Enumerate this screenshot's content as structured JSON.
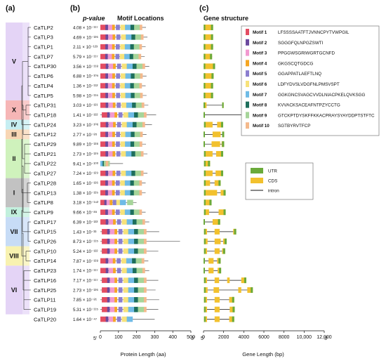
{
  "panels": {
    "a": "(a)",
    "b": "(b)",
    "c": "(c)"
  },
  "headers": {
    "pvalue": "p-value",
    "motif_locations": "Motif Locations",
    "gene_structure": "Gene structure"
  },
  "groups": [
    {
      "label": "V",
      "first": 0,
      "last": 7,
      "color": "#e4d4f6"
    },
    {
      "label": "X",
      "first": 8,
      "last": 9,
      "color": "#f6b6b6"
    },
    {
      "label": "IV",
      "first": 10,
      "last": 10,
      "color": "#c6eef2"
    },
    {
      "label": "III",
      "first": 11,
      "last": 11,
      "color": "#f8d6b4"
    },
    {
      "label": "II",
      "first": 12,
      "last": 15,
      "color": "#cff2bc"
    },
    {
      "label": "I",
      "first": 16,
      "last": 18,
      "color": "#c2c2c2"
    },
    {
      "label": "IX",
      "first": 19,
      "last": 19,
      "color": "#c2f0dd"
    },
    {
      "label": "VII",
      "first": 20,
      "last": 22,
      "color": "#c7dcf6"
    },
    {
      "label": "VIII",
      "first": 23,
      "last": 24,
      "color": "#f8f2b0"
    },
    {
      "label": "VI",
      "first": 25,
      "last": 29,
      "color": "#e4d4f6"
    }
  ],
  "genes": [
    {
      "name": "CaTLP2",
      "pvalue": "4.08 × 10⁻¹¹⁷",
      "length": 252,
      "motifs": [
        1,
        2,
        3,
        4,
        5,
        6,
        7,
        8,
        9,
        10
      ],
      "gene": [
        {
          "s": 20,
          "e": 950
        }
      ]
    },
    {
      "name": "CaTLP3",
      "pvalue": "4.69 × 10⁻¹²⁶",
      "length": 260,
      "motifs": [
        1,
        2,
        3,
        4,
        5,
        6,
        7,
        8,
        9,
        10
      ],
      "gene": [
        {
          "s": 20,
          "e": 950
        }
      ]
    },
    {
      "name": "CaTLP1",
      "pvalue": "2.11 × 10⁻¹²³",
      "length": 250,
      "motifs": [
        1,
        2,
        3,
        4,
        5,
        6,
        7,
        8,
        9,
        10
      ],
      "gene": [
        {
          "s": 20,
          "e": 950
        }
      ]
    },
    {
      "name": "CaTLP7",
      "pvalue": "5.79 × 10⁻¹¹⁷",
      "length": 245,
      "motifs": [
        1,
        2,
        3,
        4,
        5,
        6,
        7,
        8,
        9,
        10
      ],
      "gene": [
        {
          "s": 20,
          "e": 850
        }
      ]
    },
    {
      "name": "CaTLP30",
      "pvalue": "3.56 × 10⁻¹¹⁸",
      "length": 270,
      "motifs": [
        1,
        2,
        3,
        4,
        5,
        6,
        7,
        8,
        9,
        10
      ],
      "gene": [
        {
          "s": 20,
          "e": 1150
        }
      ]
    },
    {
      "name": "CaTLP6",
      "pvalue": "6.88 × 10⁻¹⁰⁵",
      "length": 255,
      "motifs": [
        1,
        2,
        3,
        4,
        5,
        6,
        7,
        8,
        9,
        10
      ],
      "gene": [
        {
          "s": 20,
          "e": 1000
        }
      ]
    },
    {
      "name": "CaTLP4",
      "pvalue": "1.36 × 10⁻¹¹²",
      "length": 250,
      "motifs": [
        1,
        2,
        3,
        4,
        5,
        6,
        7,
        8,
        9,
        10
      ],
      "gene": [
        {
          "s": 20,
          "e": 950
        }
      ]
    },
    {
      "name": "CaTLP5",
      "pvalue": "5.98 × 10⁻¹¹⁵",
      "length": 255,
      "motifs": [
        1,
        2,
        3,
        4,
        5,
        6,
        7,
        8,
        9,
        10
      ],
      "gene": [
        {
          "s": 20,
          "e": 950
        }
      ]
    },
    {
      "name": "CaTLP31",
      "pvalue": "3.03 × 10⁻¹²¹",
      "length": 265,
      "motifs": [
        1,
        2,
        3,
        4,
        5,
        6,
        7,
        8,
        9,
        10
      ],
      "gene": [
        {
          "s": 0,
          "e": 300
        },
        {
          "s": 1850,
          "e": 2000
        }
      ]
    },
    {
      "name": "CaTLP18",
      "pvalue": "1.41 × 10⁻¹²²",
      "length": 308,
      "motifs": [
        1,
        2,
        3,
        4,
        5,
        6,
        7,
        8,
        9,
        10
      ],
      "gene": [
        {
          "s": 0,
          "e": 100
        },
        {
          "s": 9100,
          "e": 9700
        },
        {
          "s": 11300,
          "e": 11700
        }
      ]
    },
    {
      "name": "CaTLP24",
      "pvalue": "3.23 × 10⁻¹⁰⁶",
      "length": 285,
      "motifs": [
        1,
        2,
        3,
        4,
        5,
        6,
        7,
        8,
        9,
        10
      ],
      "gene": [
        {
          "s": 50,
          "e": 900
        },
        {
          "s": 1350,
          "e": 1950
        }
      ]
    },
    {
      "name": "CaTLP12",
      "pvalue": "2.77 × 10⁻⁸⁵",
      "length": 255,
      "motifs": [
        1,
        2,
        3,
        4,
        5,
        6,
        7,
        8,
        9,
        10
      ],
      "gene": [
        {
          "s": 0,
          "e": 100
        },
        {
          "s": 900,
          "e": 1700
        },
        {
          "s": 1850,
          "e": 2050
        }
      ]
    },
    {
      "name": "CaTLP29",
      "pvalue": "9.89 × 10⁻¹²⁸",
      "length": 252,
      "motifs": [
        1,
        2,
        3,
        4,
        5,
        6,
        7,
        8,
        9,
        10
      ],
      "gene": [
        {
          "s": 0,
          "e": 100
        },
        {
          "s": 800,
          "e": 1650
        },
        {
          "s": 1800,
          "e": 2050
        }
      ]
    },
    {
      "name": "CaTLP21",
      "pvalue": "2.73 × 10⁻¹²⁹",
      "length": 260,
      "motifs": [
        1,
        2,
        3,
        4,
        5,
        6,
        7,
        8,
        9,
        10
      ],
      "gene": [
        {
          "s": 50,
          "e": 900
        },
        {
          "s": 1250,
          "e": 1950
        }
      ]
    },
    {
      "name": "CaTLP22",
      "pvalue": "9.41 × 10⁻¹⁰⁰",
      "length": 125,
      "motifs": [
        7,
        8,
        9,
        10
      ],
      "gene": [
        {
          "s": 50,
          "e": 650
        }
      ]
    },
    {
      "name": "CaTLP27",
      "pvalue": "7.24 × 10⁻¹²⁹",
      "length": 260,
      "motifs": [
        1,
        2,
        3,
        4,
        5,
        6,
        7,
        8,
        9,
        10
      ],
      "gene": [
        {
          "s": 50,
          "e": 900
        },
        {
          "s": 1200,
          "e": 1950
        }
      ]
    },
    {
      "name": "CaTLP28",
      "pvalue": "1.65 × 10⁻¹²⁶",
      "length": 250,
      "motifs": [
        1,
        2,
        3,
        4,
        5,
        6,
        7,
        8,
        9,
        10
      ],
      "gene": [
        {
          "s": 50,
          "e": 650
        },
        {
          "s": 1100,
          "e": 1700
        }
      ]
    },
    {
      "name": "CaTLP13",
      "pvalue": "1.38 × 10⁻¹²⁵",
      "length": 250,
      "motifs": [
        1,
        2,
        3,
        4,
        5,
        6,
        7,
        8,
        9,
        10
      ],
      "gene": [
        {
          "s": 50,
          "e": 1350
        },
        {
          "s": 1700,
          "e": 2200
        }
      ]
    },
    {
      "name": "CaTLP8",
      "pvalue": "3.18 × 10⁻¹⁴²",
      "length": 200,
      "motifs": [
        1,
        2,
        3,
        4,
        5,
        6,
        7,
        9
      ],
      "gene": [
        {
          "s": 50,
          "e": 800
        }
      ]
    },
    {
      "name": "CaTLP9",
      "pvalue": "9.66 × 10⁻⁸⁵",
      "length": 250,
      "motifs": [
        1,
        2,
        3,
        4,
        5,
        6,
        7,
        8,
        9,
        10
      ],
      "gene": [
        {
          "s": 50,
          "e": 550
        },
        {
          "s": 1500,
          "e": 2200
        }
      ]
    },
    {
      "name": "CaTLP17",
      "pvalue": "6.39 × 10⁻¹²²",
      "length": 270,
      "motifs": [
        1,
        2,
        3,
        4,
        5,
        6,
        7,
        8,
        9,
        10
      ],
      "gene": [
        {
          "s": 0,
          "e": 100
        },
        {
          "s": 900,
          "e": 1650
        }
      ]
    },
    {
      "name": "CaTLP15",
      "pvalue": "1.43 × 10⁻³³",
      "length": 325,
      "motifs": [
        1,
        2,
        3,
        4,
        5,
        6,
        7,
        8,
        9,
        10
      ],
      "gene": [
        {
          "s": 50,
          "e": 350
        },
        {
          "s": 1100,
          "e": 1600
        },
        {
          "s": 2950,
          "e": 3250
        }
      ]
    },
    {
      "name": "CaTLP26",
      "pvalue": "8.73 × 10⁻¹¹⁵",
      "length": 440,
      "motifs": [
        1,
        2,
        3,
        4,
        5,
        6,
        7,
        8,
        9,
        10
      ],
      "gene": [
        {
          "s": 50,
          "e": 400
        },
        {
          "s": 1100,
          "e": 1700
        },
        {
          "s": 1950,
          "e": 2300
        }
      ]
    },
    {
      "name": "CaTLP10",
      "pvalue": "5.24 × 10⁻¹²²",
      "length": 320,
      "motifs": [
        1,
        2,
        3,
        4,
        5,
        6,
        7,
        8,
        9,
        10
      ],
      "gene": [
        {
          "s": 50,
          "e": 350
        },
        {
          "s": 1100,
          "e": 1600
        },
        {
          "s": 1850,
          "e": 2150
        }
      ]
    },
    {
      "name": "CaTLP14",
      "pvalue": "7.87 × 10⁻¹²⁸",
      "length": 265,
      "motifs": [
        1,
        2,
        3,
        4,
        5,
        6,
        7,
        8,
        9,
        10
      ],
      "gene": [
        {
          "s": 0,
          "e": 100
        },
        {
          "s": 500,
          "e": 1000
        },
        {
          "s": 1350,
          "e": 1700
        }
      ]
    },
    {
      "name": "CaTLP23",
      "pvalue": "1.74 × 10⁻¹¹⁷",
      "length": 270,
      "motifs": [
        1,
        2,
        3,
        4,
        5,
        6,
        7,
        8,
        9,
        10
      ],
      "gene": [
        {
          "s": 0,
          "e": 100
        },
        {
          "s": 500,
          "e": 1000
        },
        {
          "s": 1400,
          "e": 1750
        }
      ]
    },
    {
      "name": "CaTLP16",
      "pvalue": "7.17 × 10⁻¹¹⁷",
      "length": 320,
      "motifs": [
        1,
        2,
        3,
        4,
        5,
        6,
        7,
        8,
        9,
        10
      ],
      "gene": [
        {
          "s": 50,
          "e": 350
        },
        {
          "s": 1100,
          "e": 1550
        },
        {
          "s": 2350,
          "e": 2600
        },
        {
          "s": 3750,
          "e": 4250
        }
      ]
    },
    {
      "name": "CaTLP25",
      "pvalue": "2.73 × 10⁻¹²⁶",
      "length": 305,
      "motifs": [
        1,
        2,
        3,
        4,
        5,
        6,
        7,
        8,
        9,
        10
      ],
      "gene": [
        {
          "s": 50,
          "e": 400
        },
        {
          "s": 1000,
          "e": 1550
        },
        {
          "s": 3450,
          "e": 3750
        },
        {
          "s": 4350,
          "e": 4900
        }
      ]
    },
    {
      "name": "CaTLP11",
      "pvalue": "7.85 × 10⁻⁸¹",
      "length": 325,
      "motifs": [
        1,
        2,
        3,
        4,
        5,
        6,
        7,
        8,
        9,
        10
      ],
      "gene": [
        {
          "s": 50,
          "e": 350
        },
        {
          "s": 1100,
          "e": 1600
        },
        {
          "s": 2550,
          "e": 3050
        }
      ]
    },
    {
      "name": "CaTLP19",
      "pvalue": "5.31 × 10⁻¹¹⁵",
      "length": 320,
      "motifs": [
        1,
        2,
        3,
        4,
        5,
        6,
        7,
        8,
        9,
        10
      ],
      "gene": [
        {
          "s": 50,
          "e": 350
        },
        {
          "s": 1100,
          "e": 1600
        },
        {
          "s": 2600,
          "e": 3100
        }
      ]
    },
    {
      "name": "CaTLP20",
      "pvalue": "1.64 × 10⁻⁴⁷",
      "length": 300,
      "motifs": [
        1,
        2,
        3,
        4,
        5,
        6,
        7
      ],
      "gene": [
        {
          "s": 50,
          "e": 350
        },
        {
          "s": 1100,
          "e": 1600
        },
        {
          "s": 2550,
          "e": 3050
        }
      ]
    }
  ],
  "motif_legend": [
    {
      "label": "Motif 1",
      "seq": "LFSSSSAATFTJVNNCPYTVWPGIL",
      "color": "#e34d62"
    },
    {
      "label": "Motif 2",
      "seq": "SGGGFQLNPGZSWTI",
      "color": "#6b4a9e"
    },
    {
      "label": "Motif 3",
      "seq": "PPGGWSGRIWGRTGCNFD",
      "color": "#f29ad0"
    },
    {
      "label": "Motif 4",
      "seq": "GKGSCQTGDCG",
      "color": "#f5a623"
    },
    {
      "label": "Motif 5",
      "seq": "GGAPPATLAEFTLNQ",
      "color": "#8b7ecf"
    },
    {
      "label": "Motif 6",
      "seq": "LDFYDVSLVDGFNLPMSVSPT",
      "color": "#f7e27a"
    },
    {
      "label": "Motif 7",
      "seq": "GGKGNCSVAGCVVDLNIACPKELQVKSGG",
      "color": "#6fbbe6"
    },
    {
      "label": "Motif 8",
      "seq": "KVVACKSACEAFNTPZYCCTG",
      "color": "#1d6e5b"
    },
    {
      "label": "Motif 9",
      "seq": "GTCKPTDYSKFFKKACPRAYSYAYDDPTSTFTC",
      "color": "#a6d59a"
    },
    {
      "label": "Motif 10",
      "seq": "SGTBYRVTFCP",
      "color": "#f4b98c"
    }
  ],
  "gene_legend": [
    {
      "label": "UTR",
      "color": "#6aaa3a",
      "kind": "box"
    },
    {
      "label": "CDS",
      "color": "#f2c12e",
      "kind": "box"
    },
    {
      "label": "intron",
      "color": "#111111",
      "kind": "line"
    }
  ],
  "protein_axis": {
    "label": "Protein Length (aa)",
    "ticks": [
      "0",
      "100",
      "200",
      "300",
      "400",
      "500"
    ],
    "tick_values": [
      0,
      100,
      200,
      300,
      400,
      500
    ],
    "end_left": "5'",
    "end_right": "3'"
  },
  "gene_axis": {
    "label": "Gene Length (bp)",
    "ticks": [
      "0",
      "2000",
      "4000",
      "6000",
      "8000",
      "10,000",
      "12,000"
    ],
    "tick_values": [
      0,
      2000,
      4000,
      6000,
      8000,
      10000,
      12000
    ],
    "end_left": "5'",
    "end_right": "3'"
  }
}
